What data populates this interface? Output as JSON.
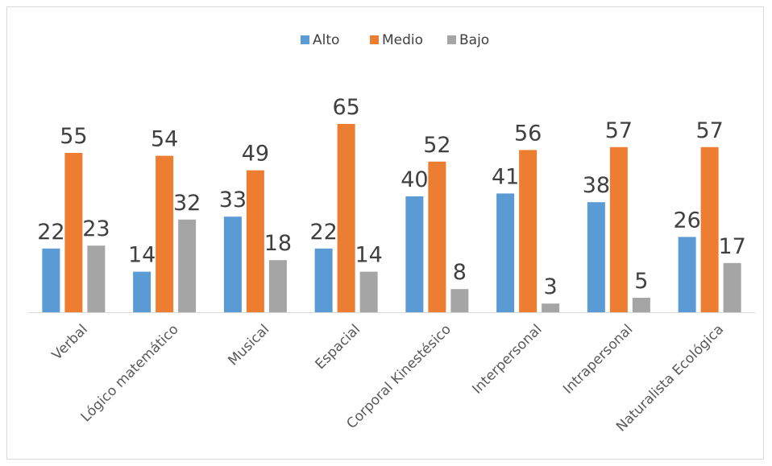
{
  "chart_data": {
    "type": "bar",
    "categories": [
      "Verbal",
      "Lógico matemático",
      "Musical",
      "Espacial",
      "Corporal Kinestésico",
      "Interpersonal",
      "Intrapersonal",
      "Naturalista Ecológica"
    ],
    "series": [
      {
        "name": "Alto",
        "color": "#5b9bd5",
        "values": [
          22,
          14,
          33,
          22,
          40,
          41,
          38,
          26
        ]
      },
      {
        "name": "Medio",
        "color": "#ed7d31",
        "values": [
          55,
          54,
          49,
          65,
          52,
          56,
          57,
          57
        ]
      },
      {
        "name": "Bajo",
        "color": "#a5a5a5",
        "values": [
          23,
          32,
          18,
          14,
          8,
          3,
          5,
          17
        ]
      }
    ],
    "ylim": [
      0,
      65
    ],
    "grid": false,
    "legend_position": "top-center",
    "data_labels": true
  }
}
